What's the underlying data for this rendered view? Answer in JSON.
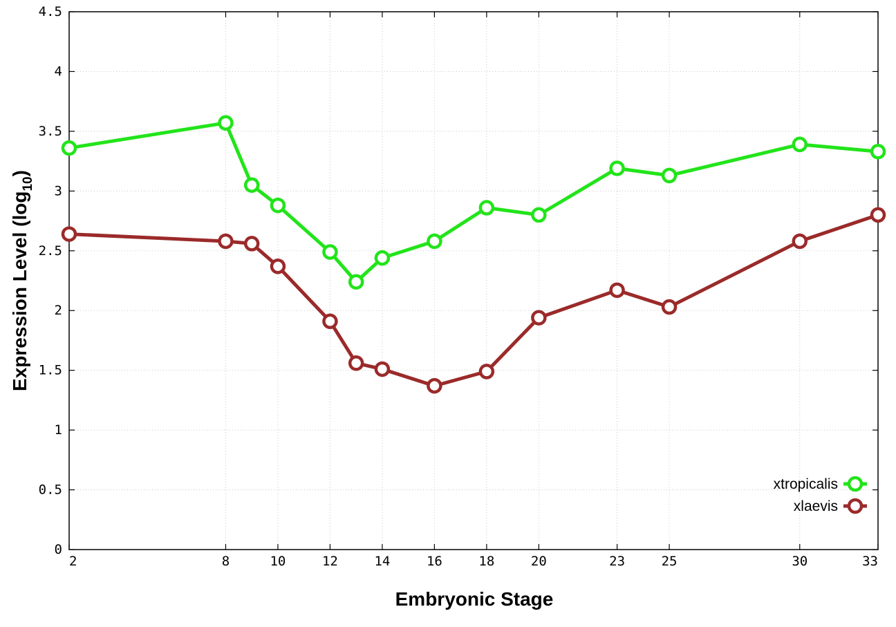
{
  "chart_data": {
    "type": "line",
    "xlabel": "Embryonic Stage",
    "ylabel": "Expression Level (log",
    "ylabel_subscript": "10",
    "ylabel_close": ")",
    "ylim": [
      0,
      4.5
    ],
    "y_ticks": [
      "0",
      "0.5",
      "1",
      "1.5",
      "2",
      "2.5",
      "3",
      "3.5",
      "4",
      "4.5"
    ],
    "y_tick_values": [
      0,
      0.5,
      1,
      1.5,
      2,
      2.5,
      3,
      3.5,
      4,
      4.5
    ],
    "x": [
      2,
      8,
      9,
      10,
      12,
      13,
      14,
      16,
      18,
      20,
      23,
      25,
      30,
      33
    ],
    "x_ticks": [
      "2",
      "8",
      "10",
      "12",
      "14",
      "16",
      "18",
      "20",
      "23",
      "25",
      "30",
      "33"
    ],
    "x_tick_values": [
      2,
      8,
      10,
      12,
      14,
      16,
      18,
      20,
      23,
      25,
      30,
      33
    ],
    "grid": true,
    "legend_position": "bottom-right",
    "series": [
      {
        "name": "xtropicalis",
        "color": "#22e41a",
        "values": [
          3.36,
          3.57,
          3.05,
          2.88,
          2.49,
          2.24,
          2.44,
          2.58,
          2.86,
          2.8,
          3.19,
          3.13,
          3.39,
          3.33
        ]
      },
      {
        "name": "xlaevis",
        "color": "#9b2a2a",
        "values": [
          2.64,
          2.58,
          2.56,
          2.37,
          1.91,
          1.56,
          1.51,
          1.37,
          1.49,
          1.94,
          2.17,
          2.03,
          2.58,
          2.8
        ]
      }
    ]
  }
}
